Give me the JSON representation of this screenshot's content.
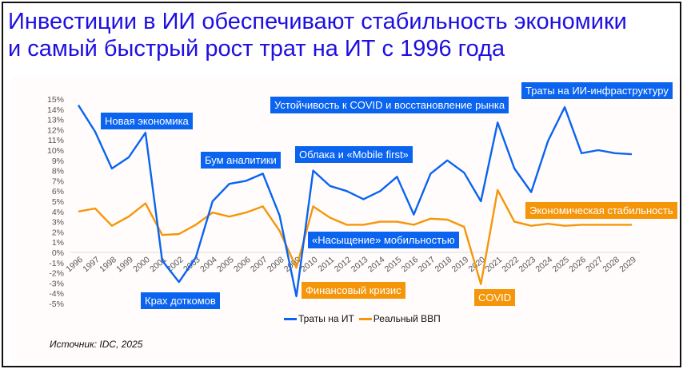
{
  "title_line1": "Инвестиции в ИИ обеспечивают стабильность экономики",
  "title_line2": "и самый быстрый рост трат на ИТ с 1996 года",
  "source": "Источник: IDC, 2025",
  "chart_data": {
    "type": "line",
    "x": [
      "1996",
      "1997",
      "1998",
      "1999",
      "2000",
      "2001",
      "2002",
      "2003",
      "2004",
      "2005",
      "2006",
      "2007",
      "2008",
      "2009",
      "2010",
      "2011",
      "2012",
      "2013",
      "2014",
      "2015",
      "2016",
      "2017",
      "2018",
      "2019",
      "2020",
      "2021",
      "2022",
      "2023",
      "2024",
      "2025",
      "2026",
      "2027",
      "2028",
      "2029"
    ],
    "series": [
      {
        "name": "Траты на ИТ",
        "color": "#0a64f0",
        "values": [
          14.4,
          11.8,
          8.2,
          9.3,
          11.7,
          -0.8,
          -2.9,
          -0.5,
          5.0,
          6.7,
          7.0,
          7.7,
          3.6,
          -4.3,
          8.0,
          6.5,
          6.0,
          5.2,
          6.0,
          7.4,
          3.7,
          7.7,
          9.0,
          7.8,
          5.0,
          12.7,
          8.2,
          5.9,
          10.9,
          14.2,
          9.7,
          10.0,
          9.7,
          9.6
        ]
      },
      {
        "name": "Реальный ВВП",
        "color": "#f5960a",
        "values": [
          4.0,
          4.3,
          2.6,
          3.5,
          4.8,
          1.7,
          1.8,
          2.7,
          3.9,
          3.5,
          3.9,
          4.5,
          2.1,
          -1.5,
          4.5,
          3.4,
          2.7,
          2.7,
          3.0,
          3.0,
          2.7,
          3.3,
          3.2,
          2.5,
          -3.1,
          6.1,
          3.0,
          2.6,
          2.8,
          2.6,
          2.7,
          2.7,
          2.7,
          2.7
        ]
      }
    ],
    "ylim": [
      -5,
      15
    ],
    "yticks": [
      "15%",
      "14%",
      "13%",
      "12%",
      "11%",
      "10%",
      "9%",
      "8%",
      "7%",
      "6%",
      "5%",
      "4%",
      "3%",
      "2%",
      "1%",
      "0%",
      "-1%",
      "-2%",
      "-3%",
      "-4%",
      "-5%"
    ],
    "legend": "bottom",
    "grid": false,
    "annotations": [
      {
        "text": "Новая экономика",
        "color": "blue"
      },
      {
        "text": "Крах доткомов",
        "color": "blue"
      },
      {
        "text": "Бум аналитики",
        "color": "blue"
      },
      {
        "text": "Устойчивость к COVID и восстановление рынка",
        "color": "blue"
      },
      {
        "text": "Облака и «Mobile first»",
        "color": "blue"
      },
      {
        "text": "«Насыщение» мобильностью",
        "color": "blue"
      },
      {
        "text": "Траты на ИИ-инфраструктуру",
        "color": "blue"
      },
      {
        "text": "Финансовый кризис",
        "color": "orange"
      },
      {
        "text": "COVID",
        "color": "orange"
      },
      {
        "text": "Экономическая стабильность",
        "color": "orange"
      }
    ]
  }
}
